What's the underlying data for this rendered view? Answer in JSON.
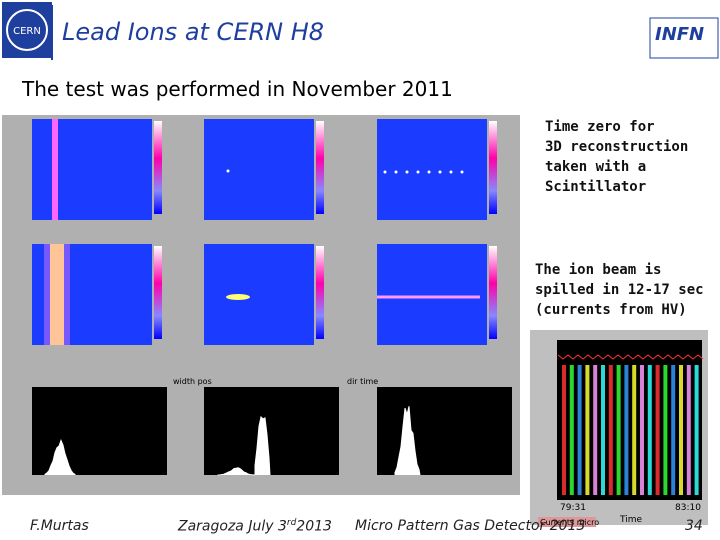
{
  "header": {
    "title": "Lead Ions at CERN H8",
    "logo_left": "CERN",
    "logo_right": "INFN"
  },
  "subtitle": "The test was performed in November 2011",
  "notes": [
    {
      "lines": [
        "Time zero for",
        "3D reconstruction",
        "taken with a",
        "Scintillator"
      ]
    },
    {
      "lines": [
        "The ion beam is",
        "spilled in 12-17 sec",
        "(currents from HV)"
      ]
    }
  ],
  "panels": {
    "labels": [
      "width pos",
      "dir time"
    ],
    "scope": {
      "legend": "Currents micro",
      "time_label": "Time",
      "t_start": "79:31",
      "t_end": "83:10"
    }
  },
  "footer": {
    "author": "F.Murtas",
    "place": "Zaragoza July 3",
    "place_sup": "rd",
    "place_year": "2013",
    "conference": "Micro Pattern Gas Detector 2013",
    "page": "34"
  }
}
